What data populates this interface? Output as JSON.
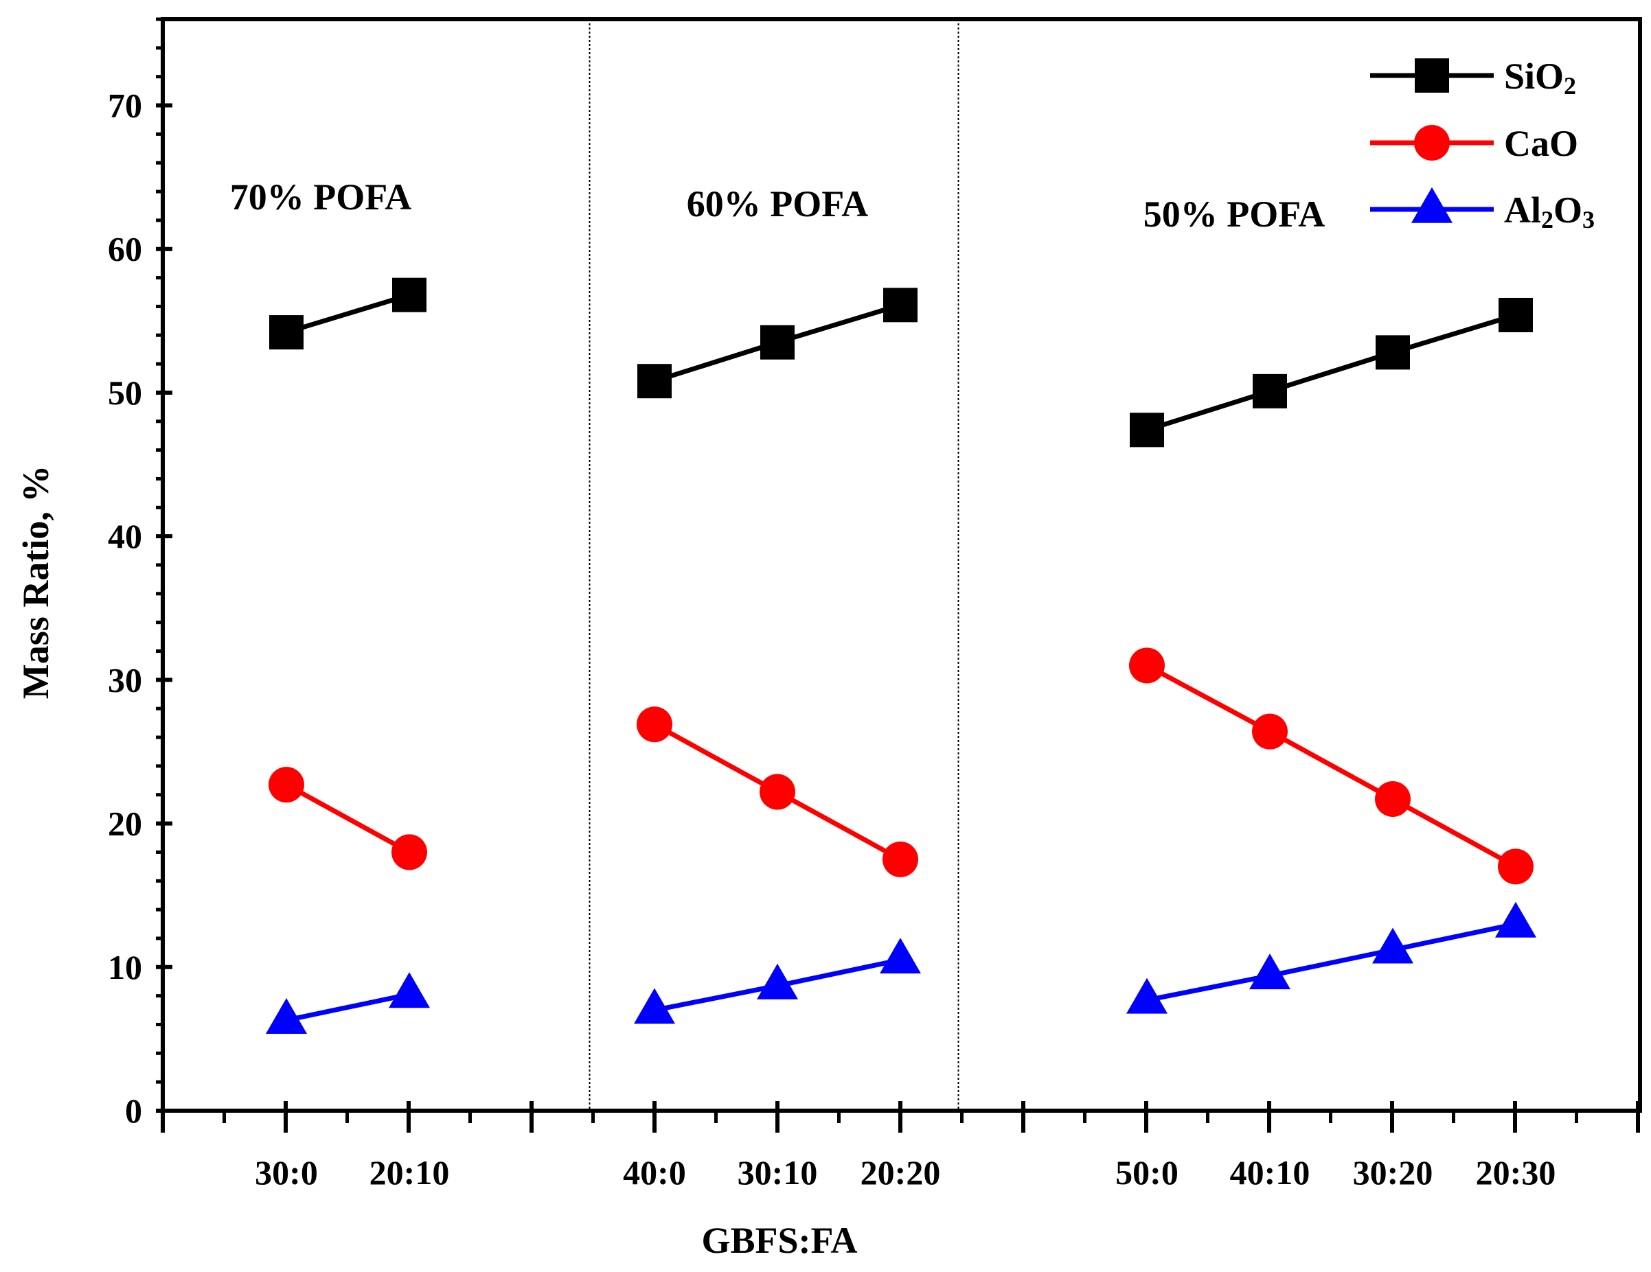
{
  "chart_data": {
    "type": "line",
    "xlabel": "GBFS:FA",
    "ylabel": "Mass Ratio, %",
    "ylim": [
      0,
      76
    ],
    "yticks": [
      0,
      10,
      20,
      30,
      40,
      50,
      60,
      70
    ],
    "grid": false,
    "legend_position": "top-right",
    "groups": [
      {
        "label": "70% POFA",
        "categories": [
          "30:0",
          "20:10"
        ],
        "SiO2": [
          54.2,
          56.8
        ],
        "CaO": [
          22.7,
          18.0
        ],
        "Al2O3": [
          6.3,
          8.1
        ]
      },
      {
        "label": "60% POFA",
        "categories": [
          "40:0",
          "30:10",
          "20:20"
        ],
        "SiO2": [
          50.8,
          53.5,
          56.1
        ],
        "CaO": [
          26.9,
          22.2,
          17.5
        ],
        "Al2O3": [
          7.0,
          8.7,
          10.5
        ]
      },
      {
        "label": "50% POFA",
        "categories": [
          "50:0",
          "40:10",
          "30:20",
          "20:30"
        ],
        "SiO2": [
          47.4,
          50.1,
          52.8,
          55.4
        ],
        "CaO": [
          31.0,
          26.4,
          21.7,
          17.0
        ],
        "Al2O3": [
          7.7,
          9.4,
          11.2,
          13.0
        ]
      }
    ],
    "series": [
      {
        "key": "SiO2",
        "name_base": "SiO",
        "name_sub": "2",
        "name_tail": "",
        "color": "#000000",
        "marker": "square"
      },
      {
        "key": "CaO",
        "name_base": "CaO",
        "name_sub": "",
        "name_tail": "",
        "color": "#ff0000",
        "marker": "circle"
      },
      {
        "key": "Al2O3",
        "name_base": "Al",
        "name_sub": "2",
        "name_tail": "O",
        "name_sub2": "3",
        "color": "#0000ff",
        "marker": "triangle"
      }
    ]
  }
}
